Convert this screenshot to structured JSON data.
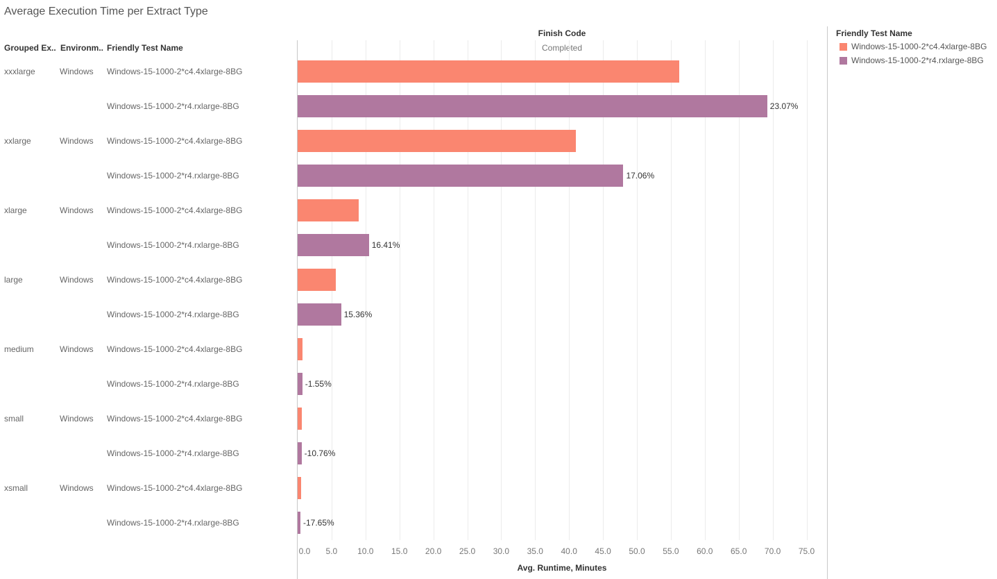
{
  "header": {
    "title": "Average Execution Time per Extract Type",
    "col_grouped": "Grouped Ex..",
    "col_environment": "Environm..",
    "col_friendly": "Friendly Test Name",
    "finish_code_label": "Finish Code",
    "finish_code_value": "Completed"
  },
  "legend": {
    "title": "Friendly Test Name",
    "items": [
      {
        "label": "Windows-15-1000-2*c4.4xlarge-8BG",
        "color": "#fa8670"
      },
      {
        "label": "Windows-15-1000-2*r4.rxlarge-8BG",
        "color": "#b0789f"
      }
    ]
  },
  "chart_data": {
    "type": "bar",
    "orientation": "horizontal",
    "title": "Average Execution Time per Extract Type",
    "xlabel": "Avg. Runtime, Minutes",
    "xlim": [
      0,
      77
    ],
    "xticks": [
      "0.0",
      "5.0",
      "10.0",
      "15.0",
      "20.0",
      "25.0",
      "30.0",
      "35.0",
      "40.0",
      "45.0",
      "50.0",
      "55.0",
      "60.0",
      "65.0",
      "70.0",
      "75.0"
    ],
    "groups": [
      {
        "group": "xxxlarge",
        "environment": "Windows",
        "rows": [
          {
            "name": "Windows-15-1000-2*c4.4xlarge-8BG",
            "value": 56.2,
            "label": ""
          },
          {
            "name": "Windows-15-1000-2*r4.rxlarge-8BG",
            "value": 69.2,
            "label": "23.07%"
          }
        ]
      },
      {
        "group": "xxlarge",
        "environment": "Windows",
        "rows": [
          {
            "name": "Windows-15-1000-2*c4.4xlarge-8BG",
            "value": 41.0,
            "label": ""
          },
          {
            "name": "Windows-15-1000-2*r4.rxlarge-8BG",
            "value": 48.0,
            "label": "17.06%"
          }
        ]
      },
      {
        "group": "xlarge",
        "environment": "Windows",
        "rows": [
          {
            "name": "Windows-15-1000-2*c4.4xlarge-8BG",
            "value": 9.0,
            "label": ""
          },
          {
            "name": "Windows-15-1000-2*r4.rxlarge-8BG",
            "value": 10.5,
            "label": "16.41%"
          }
        ]
      },
      {
        "group": "large",
        "environment": "Windows",
        "rows": [
          {
            "name": "Windows-15-1000-2*c4.4xlarge-8BG",
            "value": 5.6,
            "label": ""
          },
          {
            "name": "Windows-15-1000-2*r4.rxlarge-8BG",
            "value": 6.4,
            "label": "15.36%"
          }
        ]
      },
      {
        "group": "medium",
        "environment": "Windows",
        "rows": [
          {
            "name": "Windows-15-1000-2*c4.4xlarge-8BG",
            "value": 0.7,
            "label": ""
          },
          {
            "name": "Windows-15-1000-2*r4.rxlarge-8BG",
            "value": 0.69,
            "label": "-1.55%"
          }
        ]
      },
      {
        "group": "small",
        "environment": "Windows",
        "rows": [
          {
            "name": "Windows-15-1000-2*c4.4xlarge-8BG",
            "value": 0.65,
            "label": ""
          },
          {
            "name": "Windows-15-1000-2*r4.rxlarge-8BG",
            "value": 0.58,
            "label": "-10.76%"
          }
        ]
      },
      {
        "group": "xsmall",
        "environment": "Windows",
        "rows": [
          {
            "name": "Windows-15-1000-2*c4.4xlarge-8BG",
            "value": 0.5,
            "label": ""
          },
          {
            "name": "Windows-15-1000-2*r4.rxlarge-8BG",
            "value": 0.41,
            "label": "-17.65%"
          }
        ]
      }
    ]
  }
}
